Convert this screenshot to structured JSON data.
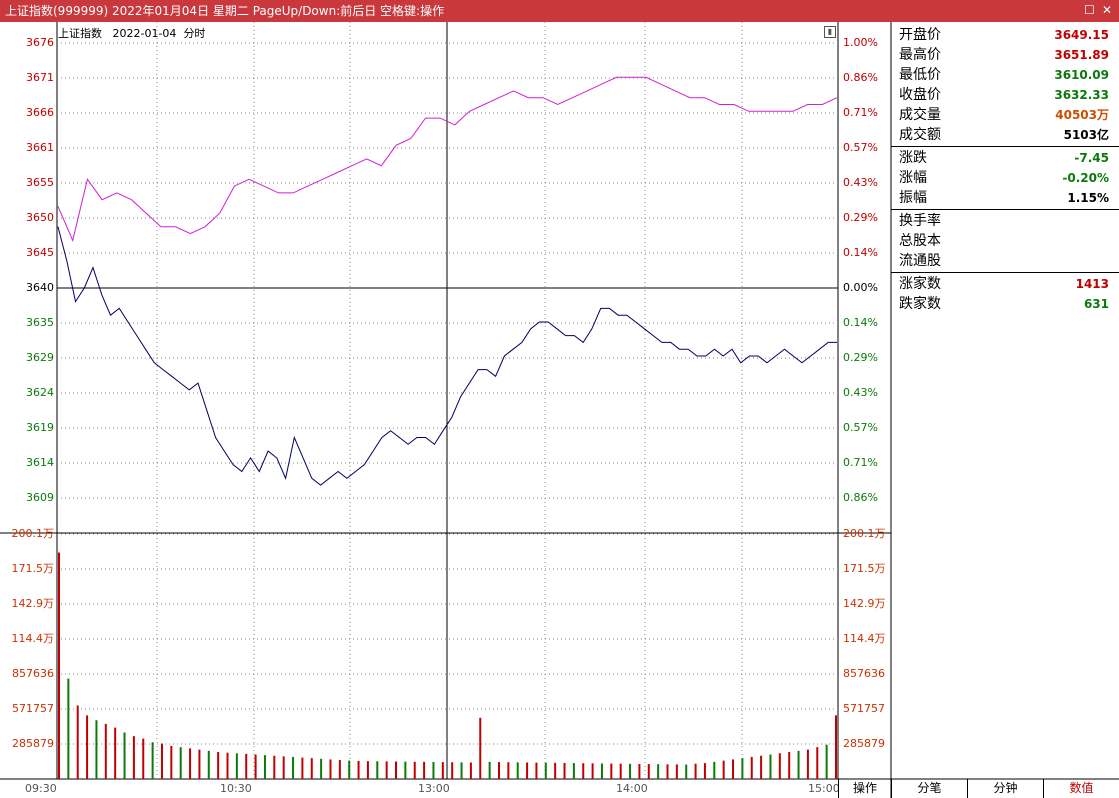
{
  "window": {
    "title": "上证指数(999999) 2022年01月04日 星期二 PageUp/Down:前后日 空格键:操作",
    "buttons": [
      "restore-icon",
      "close-icon"
    ]
  },
  "chart_header": {
    "name": "上证指数",
    "date": "2022-01-04",
    "mode": "分时"
  },
  "price_axis_left": [
    "3676",
    "3671",
    "3666",
    "3661",
    "3655",
    "3650",
    "3645",
    "3640",
    "3635",
    "3629",
    "3624",
    "3619",
    "3614",
    "3609"
  ],
  "pct_axis_right": [
    "1.00%",
    "0.86%",
    "0.71%",
    "0.57%",
    "0.43%",
    "0.29%",
    "0.14%",
    "0.00%",
    "0.14%",
    "0.29%",
    "0.43%",
    "0.57%",
    "0.71%",
    "0.86%"
  ],
  "volume_axis": [
    "200.1万",
    "171.5万",
    "142.9万",
    "114.4万",
    "857636",
    "571757",
    "285879"
  ],
  "time_axis": [
    "09:30",
    "10:30",
    "13:00",
    "14:00",
    "15:00"
  ],
  "info_panel": {
    "group1": [
      {
        "label": "开盘价",
        "value": "3649.15",
        "color": "#c00000"
      },
      {
        "label": "最高价",
        "value": "3651.89",
        "color": "#c00000"
      },
      {
        "label": "最低价",
        "value": "3610.09",
        "color": "#0a7a0a"
      },
      {
        "label": "收盘价",
        "value": "3632.33",
        "color": "#0a7a0a"
      },
      {
        "label": "成交量",
        "value": "40503万",
        "color": "#c85000"
      },
      {
        "label": "成交额",
        "value": "5103亿",
        "color": "#000000"
      }
    ],
    "group2": [
      {
        "label": "涨跌",
        "value": "-7.45",
        "color": "#0a7a0a"
      },
      {
        "label": "涨幅",
        "value": "-0.20%",
        "color": "#0a7a0a"
      },
      {
        "label": "振幅",
        "value": "1.15%",
        "color": "#000000"
      }
    ],
    "group3": [
      {
        "label": "换手率",
        "value": "",
        "color": "#000000"
      },
      {
        "label": "总股本",
        "value": "",
        "color": "#000000"
      },
      {
        "label": "流通股",
        "value": "",
        "color": "#000000"
      }
    ],
    "group4": [
      {
        "label": "涨家数",
        "value": "1413",
        "color": "#c00000"
      },
      {
        "label": "跌家数",
        "value": "631",
        "color": "#0a7a0a"
      }
    ]
  },
  "bottom_tabs": {
    "operate": "操作",
    "tabs": [
      "分笔",
      "分钟",
      "数值"
    ],
    "active": "数值"
  },
  "chart_data": {
    "type": "line",
    "title": "上证指数 2022-01-04 分时",
    "series": [
      {
        "name": "上证指数",
        "color": "#000060",
        "values": [
          3649,
          3644,
          3638,
          3640,
          3643,
          3639,
          3636,
          3637,
          3635,
          3633,
          3631,
          3629,
          3628,
          3627,
          3626,
          3625,
          3626,
          3622,
          3618,
          3616,
          3614,
          3613,
          3615,
          3613,
          3616,
          3615,
          3612,
          3618,
          3615,
          3612,
          3611,
          3612,
          3613,
          3612,
          3613,
          3614,
          3616,
          3618,
          3619,
          3618,
          3617,
          3618,
          3618,
          3617,
          3619,
          3621,
          3624,
          3626,
          3628,
          3628,
          3627,
          3630,
          3631,
          3632,
          3634,
          3635,
          3635,
          3634,
          3633,
          3633,
          3632,
          3634,
          3637,
          3637,
          3636,
          3636,
          3635,
          3634,
          3633,
          3632,
          3632,
          3631,
          3631,
          3630,
          3630,
          3631,
          3630,
          3631,
          3629,
          3630,
          3630,
          3629,
          3630,
          3631,
          3630,
          3629,
          3630,
          3631,
          3632,
          3632
        ]
      },
      {
        "name": "领先指标",
        "color": "#d020d0",
        "values": [
          3652,
          3647,
          3656,
          3653,
          3654,
          3653,
          3651,
          3649,
          3649,
          3648,
          3649,
          3651,
          3655,
          3656,
          3655,
          3654,
          3654,
          3655,
          3656,
          3657,
          3658,
          3659,
          3658,
          3661,
          3662,
          3665,
          3665,
          3664,
          3666,
          3667,
          3668,
          3669,
          3668,
          3668,
          3667,
          3668,
          3669,
          3670,
          3671,
          3671,
          3671,
          3670,
          3669,
          3668,
          3668,
          3667,
          3667,
          3666,
          3666,
          3666,
          3666,
          3667,
          3667,
          3668
        ]
      }
    ],
    "xlabels": [
      "09:30",
      "10:30",
      "13:00",
      "14:00",
      "15:00"
    ],
    "ylim": [
      3605,
      3676
    ],
    "volume": [
      1850000,
      820000,
      600000,
      520000,
      480000,
      450000,
      420000,
      380000,
      350000,
      330000,
      300000,
      290000,
      270000,
      260000,
      250000,
      240000,
      230000,
      220000,
      215000,
      210000,
      205000,
      200000,
      195000,
      190000,
      185000,
      180000,
      175000,
      170000,
      165000,
      160000,
      155000,
      150000,
      148000,
      146000,
      145000,
      144000,
      143000,
      142000,
      141000,
      140000,
      139000,
      138000,
      137000,
      136000,
      135000,
      500000,
      140000,
      138000,
      137000,
      136000,
      135000,
      134000,
      133000,
      132000,
      131000,
      130000,
      129000,
      128000,
      127000,
      126000,
      125000,
      124000,
      123000,
      122000,
      121000,
      120000,
      119000,
      118000,
      125000,
      130000,
      140000,
      150000,
      160000,
      170000,
      180000,
      190000,
      200000,
      210000,
      220000,
      230000,
      240000,
      260000,
      280000,
      520000
    ]
  }
}
